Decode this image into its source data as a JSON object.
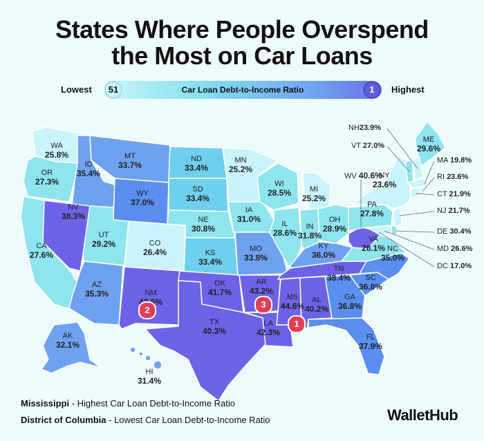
{
  "title_line1": "States Where People Overspend",
  "title_line2": "the Most on Car Loans",
  "legend": {
    "low_label": "Lowest",
    "high_label": "Highest",
    "low_rank": "51",
    "high_rank": "1",
    "title": "Car Loan Debt-to-Income Ratio"
  },
  "colors": {
    "darkest": "#6c63e8",
    "dark": "#5a8ef0",
    "mid": "#6ec5f0",
    "light": "#8ee4ef",
    "lightest": "#c9f4fb",
    "badge": "#e43e52"
  },
  "states": [
    {
      "abbr": "WA",
      "value": "25.8%"
    },
    {
      "abbr": "OR",
      "value": "27.3%"
    },
    {
      "abbr": "CA",
      "value": "27.6%"
    },
    {
      "abbr": "ID",
      "value": "35.4%"
    },
    {
      "abbr": "NV",
      "value": "38.3%"
    },
    {
      "abbr": "MT",
      "value": "33.7%"
    },
    {
      "abbr": "WY",
      "value": "37.0%"
    },
    {
      "abbr": "UT",
      "value": "29.2%"
    },
    {
      "abbr": "AZ",
      "value": "35.3%"
    },
    {
      "abbr": "CO",
      "value": "26.4%"
    },
    {
      "abbr": "NM",
      "value": "43.6%"
    },
    {
      "abbr": "ND",
      "value": "33.4%"
    },
    {
      "abbr": "SD",
      "value": "33.4%"
    },
    {
      "abbr": "NE",
      "value": "30.8%"
    },
    {
      "abbr": "KS",
      "value": "33.4%"
    },
    {
      "abbr": "OK",
      "value": "41.7%"
    },
    {
      "abbr": "TX",
      "value": "40.3%"
    },
    {
      "abbr": "MN",
      "value": "25.2%"
    },
    {
      "abbr": "IA",
      "value": "31.0%"
    },
    {
      "abbr": "MO",
      "value": "33.8%"
    },
    {
      "abbr": "AR",
      "value": "43.2%"
    },
    {
      "abbr": "LA",
      "value": "42.3%"
    },
    {
      "abbr": "WI",
      "value": "28.5%"
    },
    {
      "abbr": "IL",
      "value": "28.6%"
    },
    {
      "abbr": "MI",
      "value": "25.2%"
    },
    {
      "abbr": "IN",
      "value": "31.8%"
    },
    {
      "abbr": "OH",
      "value": "28.9%"
    },
    {
      "abbr": "KY",
      "value": "36.0%"
    },
    {
      "abbr": "TN",
      "value": "38.4%"
    },
    {
      "abbr": "MS",
      "value": "44.6%"
    },
    {
      "abbr": "AL",
      "value": "40.2%"
    },
    {
      "abbr": "GA",
      "value": "36.8%"
    },
    {
      "abbr": "FL",
      "value": "37.9%"
    },
    {
      "abbr": "SC",
      "value": "36.8%"
    },
    {
      "abbr": "NC",
      "value": "35.0%"
    },
    {
      "abbr": "VA",
      "value": "28.1%"
    },
    {
      "abbr": "WV",
      "value": "40.6%"
    },
    {
      "abbr": "PA",
      "value": "27.8%"
    },
    {
      "abbr": "NY",
      "value": "23.6%"
    },
    {
      "abbr": "ME",
      "value": "29.6%"
    },
    {
      "abbr": "AK",
      "value": "32.1%"
    },
    {
      "abbr": "HI",
      "value": "31.4%"
    }
  ],
  "small_states": [
    {
      "abbr": "NH",
      "value": "23.9%"
    },
    {
      "abbr": "VT",
      "value": "27.0%"
    },
    {
      "abbr": "MA",
      "value": "19.8%"
    },
    {
      "abbr": "RI",
      "value": "23.6%"
    },
    {
      "abbr": "CT",
      "value": "21.9%"
    },
    {
      "abbr": "NJ",
      "value": "21.7%"
    },
    {
      "abbr": "DE",
      "value": "30.4%"
    },
    {
      "abbr": "MD",
      "value": "26.6%"
    },
    {
      "abbr": "DC",
      "value": "17.0%"
    }
  ],
  "ranks": [
    "1",
    "2",
    "3"
  ],
  "footnote1_state": "Mississippi",
  "footnote1_text": " - Highest Car Loan Debt-to-Income Ratio",
  "footnote2_state": "District of Columbia",
  "footnote2_text": " - Lowest Car Loan Debt-to-Income Ratio",
  "brand": "WalletHub"
}
